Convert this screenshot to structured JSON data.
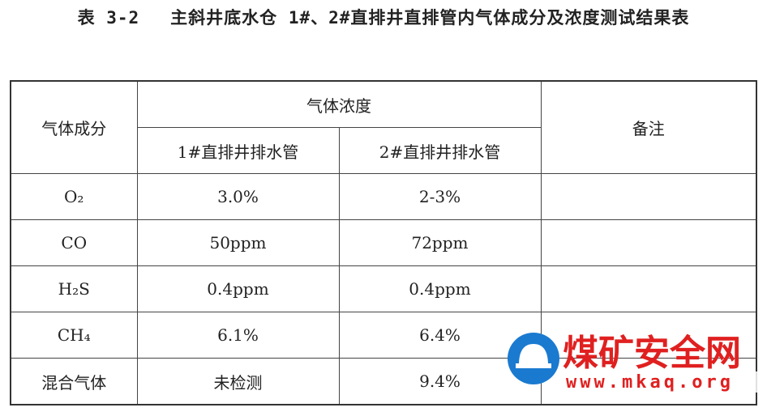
{
  "header": {
    "label": "表 3-2",
    "title": "主斜井底水仓 1#、2#直排井直排管内气体成分及浓度测试结果表"
  },
  "table": {
    "columns": {
      "component": "气体成分",
      "concentration": "气体浓度",
      "pipes": [
        "1#直排井排水管",
        "2#直排井排水管"
      ],
      "note": "备注"
    },
    "rows": [
      [
        "O₂",
        "3.0%",
        "2-3%"
      ],
      [
        "CO",
        "50ppm",
        "72ppm"
      ],
      [
        "H₂S",
        "0.4ppm",
        "0.4ppm"
      ],
      [
        "CH₄",
        "6.1%",
        "6.4%"
      ],
      [
        "混合气体",
        "未检测",
        "9.4%"
      ]
    ]
  },
  "watermark": {
    "brand": "煤矿安全网",
    "url": "www.mkaq.org"
  }
}
